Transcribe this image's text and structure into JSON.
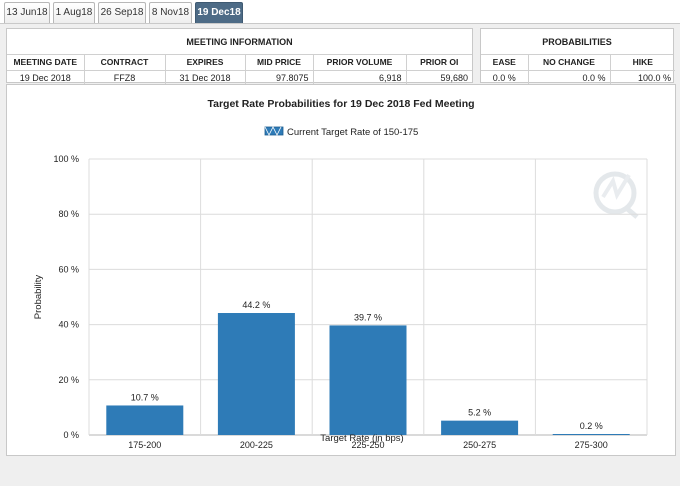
{
  "tabs": [
    {
      "label": "13 Jun18",
      "active": false
    },
    {
      "label": "1 Aug18",
      "active": false
    },
    {
      "label": "26 Sep18",
      "active": false
    },
    {
      "label": "8 Nov18",
      "active": false
    },
    {
      "label": "19 Dec18",
      "active": true
    }
  ],
  "meeting_info": {
    "title": "MEETING INFORMATION",
    "headers": [
      "MEETING DATE",
      "CONTRACT",
      "EXPIRES",
      "MID PRICE",
      "PRIOR VOLUME",
      "PRIOR OI"
    ],
    "values": [
      "19 Dec 2018",
      "FFZ8",
      "31 Dec 2018",
      "97.8075",
      "6,918",
      "59,680"
    ]
  },
  "probabilities": {
    "title": "PROBABILITIES",
    "headers": [
      "EASE",
      "NO CHANGE",
      "HIKE"
    ],
    "values": [
      "0.0 %",
      "0.0 %",
      "100.0 %"
    ]
  },
  "chart_data": {
    "type": "bar",
    "title": "Target Rate Probabilities for 19 Dec 2018 Fed Meeting",
    "legend": "Current Target Rate of 150-175",
    "categories": [
      "175-200",
      "200-225",
      "225-250",
      "250-275",
      "275-300"
    ],
    "values": [
      10.7,
      44.2,
      39.7,
      5.2,
      0.2
    ],
    "data_labels": [
      "10.7 %",
      "44.2 %",
      "39.7 %",
      "5.2 %",
      "0.2 %"
    ],
    "xlabel": "Target Rate (in bps)",
    "ylabel": "Probability",
    "ylim": [
      0,
      100
    ],
    "yticks": [
      0,
      20,
      40,
      60,
      80,
      100
    ],
    "ytick_labels": [
      "0 %",
      "20 %",
      "40 %",
      "60 %",
      "80 %",
      "100 %"
    ],
    "bar_color": "#2e7bb7",
    "grid": true
  }
}
